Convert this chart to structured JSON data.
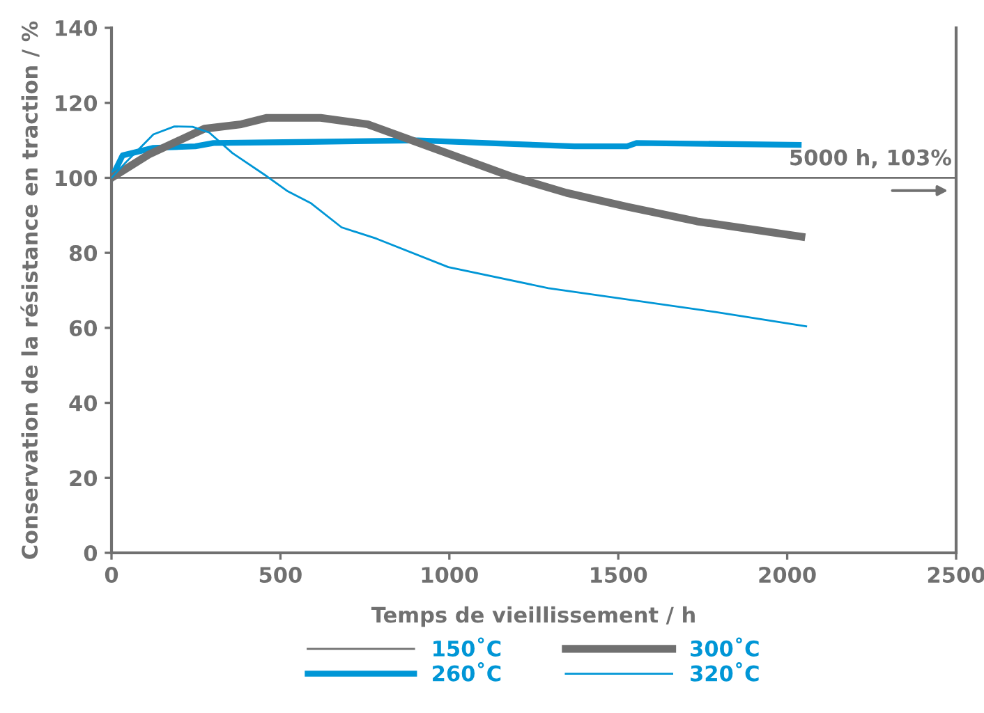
{
  "chart_data": {
    "type": "line",
    "xlabel": "Temps de vieillissement / h",
    "ylabel": "Conservation de la résistance en traction / %",
    "xlim": [
      0,
      2500
    ],
    "xticks": [
      0,
      500,
      1000,
      1500,
      2000,
      2500
    ],
    "ylim": [
      0,
      140
    ],
    "yticks": [
      0,
      20,
      40,
      60,
      80,
      100,
      120,
      140
    ],
    "grid": false,
    "legend": "bottom",
    "marker": "none",
    "line_style": "solid",
    "annotations": [
      "5000 h, 103%"
    ],
    "series": [
      {
        "name": "150˚C",
        "color": "#707070",
        "x": [
          0,
          2500
        ],
        "values": [
          100,
          100
        ]
      },
      {
        "name": "260˚C",
        "color": "#0096d6",
        "x": [
          0,
          33,
          124,
          248,
          302,
          508,
          907,
          1370,
          1526,
          1554,
          2034
        ],
        "values": [
          100,
          106,
          108,
          108.4,
          109.3,
          109.5,
          110,
          108.4,
          108.4,
          109.3,
          108.8
        ]
      },
      {
        "name": "300˚C",
        "color": "#707070",
        "x": [
          0,
          110,
          275,
          384,
          460,
          619,
          758,
          907,
          1182,
          1347,
          1526,
          1733,
          2042
        ],
        "values": [
          100,
          106.2,
          113.1,
          114.3,
          116,
          116,
          114.3,
          109.4,
          100.4,
          96,
          92.3,
          88.4,
          84.3
        ]
      },
      {
        "name": "320˚C",
        "color": "#0096d6",
        "x": [
          0,
          41,
          89,
          124,
          186,
          240,
          289,
          358,
          460,
          522,
          591,
          681,
          784,
          997,
          1293,
          1788,
          2056
        ],
        "values": [
          100,
          104,
          108.4,
          111.6,
          113.7,
          113.6,
          112.1,
          106.6,
          100.4,
          96.4,
          93.2,
          86.8,
          83.8,
          76.2,
          70.6,
          64.2,
          60.4
        ]
      }
    ]
  }
}
